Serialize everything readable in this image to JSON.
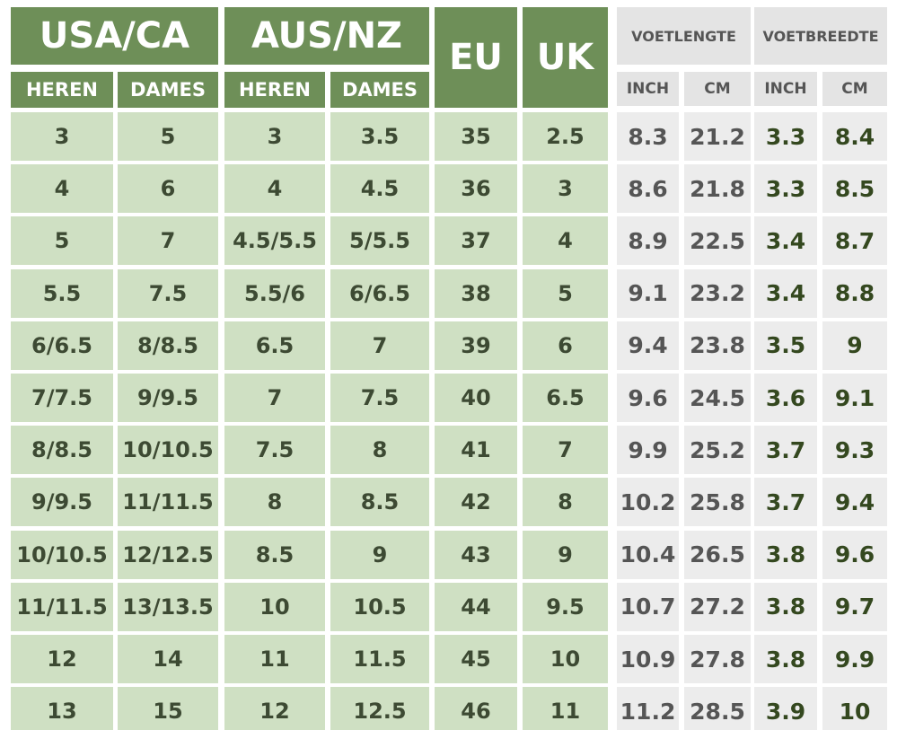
{
  "header": {
    "groups": [
      "USA/CA",
      "AUS/NZ",
      "EU",
      "UK",
      "VOETLENGTE",
      "VOETBREEDTE"
    ],
    "subheaders": [
      "HEREN",
      "DAMES",
      "HEREN",
      "DAMES",
      "INCH",
      "CM",
      "INCH",
      "CM"
    ]
  },
  "table": {
    "rows": [
      [
        "3",
        "5",
        "3",
        "3.5",
        "35",
        "2.5",
        "8.3",
        "21.2",
        "3.3",
        "8.4"
      ],
      [
        "4",
        "6",
        "4",
        "4.5",
        "36",
        "3",
        "8.6",
        "21.8",
        "3.3",
        "8.5"
      ],
      [
        "5",
        "7",
        "4.5/5.5",
        "5/5.5",
        "37",
        "4",
        "8.9",
        "22.5",
        "3.4",
        "8.7"
      ],
      [
        "5.5",
        "7.5",
        "5.5/6",
        "6/6.5",
        "38",
        "5",
        "9.1",
        "23.2",
        "3.4",
        "8.8"
      ],
      [
        "6/6.5",
        "8/8.5",
        "6.5",
        "7",
        "39",
        "6",
        "9.4",
        "23.8",
        "3.5",
        "9"
      ],
      [
        "7/7.5",
        "9/9.5",
        "7",
        "7.5",
        "40",
        "6.5",
        "9.6",
        "24.5",
        "3.6",
        "9.1"
      ],
      [
        "8/8.5",
        "10/10.5",
        "7.5",
        "8",
        "41",
        "7",
        "9.9",
        "25.2",
        "3.7",
        "9.3"
      ],
      [
        "9/9.5",
        "11/11.5",
        "8",
        "8.5",
        "42",
        "8",
        "10.2",
        "25.8",
        "3.7",
        "9.4"
      ],
      [
        "10/10.5",
        "12/12.5",
        "8.5",
        "9",
        "43",
        "9",
        "10.4",
        "26.5",
        "3.8",
        "9.6"
      ],
      [
        "11/11.5",
        "13/13.5",
        "10",
        "10.5",
        "44",
        "9.5",
        "10.7",
        "27.2",
        "3.8",
        "9.7"
      ],
      [
        "12",
        "14",
        "11",
        "11.5",
        "45",
        "10",
        "10.9",
        "27.8",
        "3.8",
        "9.9"
      ],
      [
        "13",
        "15",
        "12",
        "12.5",
        "46",
        "11",
        "11.2",
        "28.5",
        "3.9",
        "10"
      ]
    ]
  }
}
